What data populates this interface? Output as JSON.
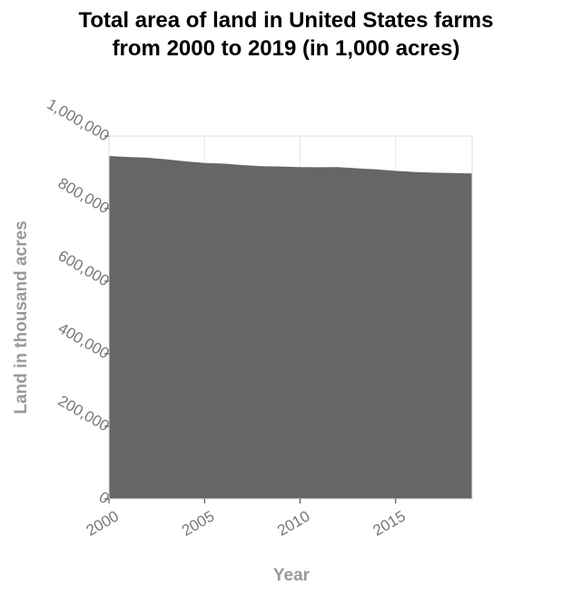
{
  "chart_data": {
    "type": "area",
    "title_lines": [
      "Total area of land in United States farms",
      "from 2000 to 2019 (in 1,000 acres)"
    ],
    "xlabel": "Year",
    "ylabel": "Land in thousand acres",
    "x_ticks": [
      2000,
      2005,
      2010,
      2015
    ],
    "y_ticks": [
      "0",
      "200,000",
      "400,000",
      "600,000",
      "800,000",
      "1,000,000"
    ],
    "y_tick_values": [
      0,
      200000,
      400000,
      600000,
      800000,
      1000000
    ],
    "xlim": [
      2000,
      2019
    ],
    "ylim": [
      0,
      1000000
    ],
    "grid": true,
    "fill_color": "#666666",
    "series": [
      {
        "x": [
          2000,
          2001,
          2002,
          2003,
          2004,
          2005,
          2006,
          2007,
          2008,
          2009,
          2010,
          2011,
          2012,
          2013,
          2014,
          2015,
          2016,
          2017,
          2018,
          2019
        ],
        "values": [
          945080,
          942070,
          940300,
          935940,
          930340,
          925790,
          924000,
          920000,
          917000,
          916000,
          914500,
          914000,
          914500,
          911000,
          908000,
          904000,
          901000,
          899000,
          898000,
          897000
        ]
      }
    ]
  }
}
